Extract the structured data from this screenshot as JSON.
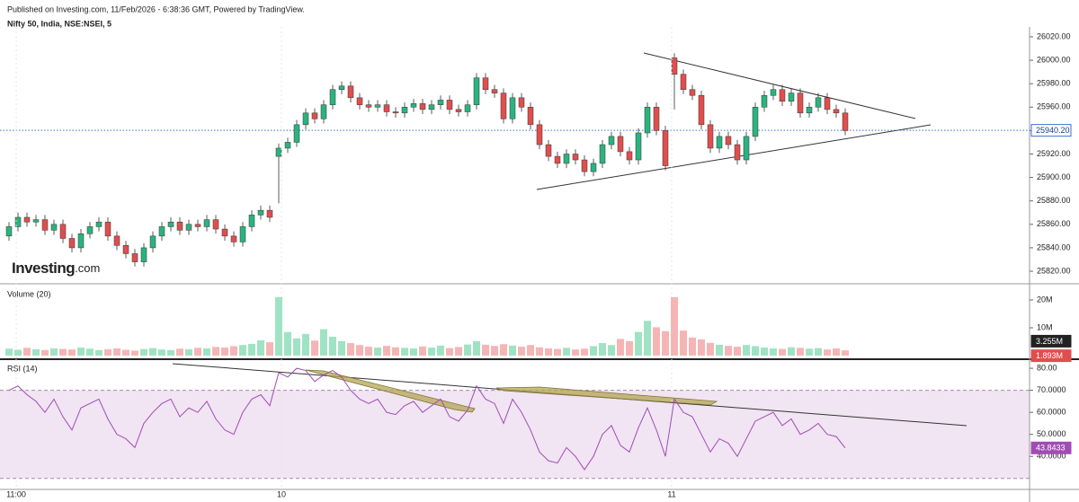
{
  "header": {
    "published": "Published on Investing.com, 11/Feb/2026 - 6:38:36 GMT, Powered by TradingView."
  },
  "logo": {
    "brand": "Investing",
    "suffix": ".com"
  },
  "chart_data": [
    {
      "type": "candlestick",
      "title": "Nifty 50, India, NSE:NSEI, 5",
      "up_color": "#2bb37f",
      "down_color": "#e04e4e",
      "open": [
        25850,
        25858,
        25866,
        25862,
        25864,
        25855,
        25860,
        25848,
        25840,
        25852,
        25858,
        25862,
        25850,
        25842,
        25835,
        25828,
        25840,
        25850,
        25858,
        25862,
        25855,
        25860,
        25858,
        25864,
        25856,
        25850,
        25845,
        25858,
        25868,
        25872,
        25918,
        25925,
        25930,
        25945,
        25955,
        25950,
        25962,
        25975,
        25978,
        25968,
        25962,
        25960,
        25962,
        25956,
        25955,
        25960,
        25963,
        25958,
        25962,
        25966,
        25958,
        25956,
        25962,
        25985,
        25975,
        25972,
        25950,
        25968,
        25960,
        25945,
        25928,
        25918,
        25912,
        25920,
        25915,
        25905,
        25912,
        25928,
        25935,
        25922,
        25915,
        25938,
        25960,
        25940,
        26002,
        25988,
        25975,
        25970,
        25945,
        25925,
        25935,
        25928,
        25915,
        25935,
        25960,
        25970,
        25975,
        25965,
        25972,
        25955,
        25960,
        25968,
        25958,
        25955
      ],
      "high": [
        25862,
        25870,
        25870,
        25868,
        25868,
        25864,
        25864,
        25852,
        25856,
        25862,
        25866,
        25866,
        25854,
        25846,
        25839,
        25844,
        25854,
        25862,
        25866,
        25866,
        25864,
        25864,
        25868,
        25868,
        25860,
        25854,
        25862,
        25872,
        25876,
        25876,
        25929,
        25934,
        25949,
        25959,
        25959,
        25966,
        25979,
        25982,
        25982,
        25972,
        25966,
        25966,
        25966,
        25960,
        25964,
        25967,
        25967,
        25966,
        25970,
        25970,
        25962,
        25966,
        25989,
        25989,
        25979,
        25976,
        25972,
        25972,
        25964,
        25949,
        25932,
        25922,
        25924,
        25924,
        25919,
        25916,
        25932,
        25939,
        25939,
        25926,
        25942,
        25964,
        25964,
        25944,
        26006,
        25992,
        25979,
        25974,
        25949,
        25939,
        25939,
        25932,
        25939,
        25964,
        25974,
        25979,
        25979,
        25976,
        25976,
        25964,
        25972,
        25972,
        25962,
        25959
      ],
      "low": [
        25846,
        25854,
        25858,
        25858,
        25851,
        25851,
        25844,
        25836,
        25836,
        25848,
        25854,
        25846,
        25838,
        25831,
        25824,
        25824,
        25836,
        25846,
        25854,
        25851,
        25851,
        25854,
        25854,
        25852,
        25846,
        25841,
        25841,
        25854,
        25864,
        25862,
        25878,
        25921,
        25926,
        25941,
        25946,
        25946,
        25958,
        25971,
        25964,
        25958,
        25956,
        25956,
        25952,
        25951,
        25951,
        25956,
        25954,
        25954,
        25958,
        25954,
        25952,
        25952,
        25958,
        25971,
        25968,
        25946,
        25946,
        25956,
        25941,
        25924,
        25914,
        25908,
        25908,
        25911,
        25901,
        25901,
        25908,
        25924,
        25918,
        25911,
        25911,
        25934,
        25936,
        25906,
        25958,
        25971,
        25966,
        25941,
        25921,
        25921,
        25924,
        25911,
        25911,
        25931,
        25956,
        25966,
        25961,
        25961,
        25951,
        25951,
        25956,
        25954,
        25951,
        25936
      ],
      "close": [
        25858,
        25866,
        25862,
        25864,
        25855,
        25860,
        25848,
        25840,
        25852,
        25858,
        25862,
        25850,
        25842,
        25835,
        25828,
        25840,
        25850,
        25858,
        25862,
        25855,
        25860,
        25858,
        25864,
        25856,
        25850,
        25845,
        25858,
        25868,
        25872,
        25866,
        25925,
        25930,
        25945,
        25955,
        25950,
        25962,
        25975,
        25978,
        25968,
        25962,
        25960,
        25962,
        25956,
        25955,
        25960,
        25963,
        25958,
        25962,
        25966,
        25958,
        25956,
        25962,
        25985,
        25975,
        25972,
        25950,
        25968,
        25960,
        25945,
        25928,
        25918,
        25912,
        25920,
        25915,
        25905,
        25912,
        25928,
        25935,
        25922,
        25915,
        25938,
        25960,
        25940,
        25910,
        25988,
        25975,
        25970,
        25945,
        25925,
        25935,
        25928,
        25915,
        25935,
        25960,
        25970,
        25975,
        25965,
        25972,
        25955,
        25960,
        25968,
        25958,
        25955,
        25940
      ],
      "ylim": [
        25809.3,
        26028.4
      ],
      "yticks": [
        {
          "value": 25820,
          "label": "25820.00"
        },
        {
          "value": 25840,
          "label": "25840.00"
        },
        {
          "value": 25860,
          "label": "25860.00"
        },
        {
          "value": 25880,
          "label": "25880.00"
        },
        {
          "value": 25900,
          "label": "25900.00"
        },
        {
          "value": 25920,
          "label": "25920.00"
        },
        {
          "value": 25940,
          "label": "25940.00"
        },
        {
          "value": 25960,
          "label": "25960.00"
        },
        {
          "value": 25980,
          "label": "25980.00"
        },
        {
          "value": 26000,
          "label": "26000.00"
        },
        {
          "value": 26020,
          "label": "26020.00"
        }
      ],
      "last_price": {
        "value": 25940.2,
        "label": "25940.20"
      },
      "x_labels": [
        {
          "index": 0.8,
          "label": "11:00"
        },
        {
          "index": 30.3,
          "label": "10"
        },
        {
          "index": 73.7,
          "label": "11"
        }
      ]
    },
    {
      "type": "bar",
      "title": "Volume (20)",
      "up_color": "#9fe3c4",
      "down_color": "#f6b5b5",
      "values": [
        2.5,
        2.1,
        2.8,
        2.3,
        2.0,
        2.6,
        2.4,
        2.2,
        2.9,
        2.5,
        2.0,
        2.3,
        2.6,
        2.1,
        1.8,
        2.4,
        2.7,
        2.2,
        2.0,
        2.5,
        2.3,
        2.8,
        2.6,
        3.1,
        2.9,
        3.4,
        3.8,
        4.2,
        5.5,
        4.8,
        21,
        8.5,
        6.2,
        7.8,
        5.4,
        9.5,
        6.8,
        5.2,
        4.5,
        3.8,
        3.2,
        2.9,
        3.5,
        3.0,
        2.8,
        2.6,
        3.3,
        2.9,
        3.6,
        2.7,
        3.1,
        4.0,
        5.2,
        3.9,
        3.5,
        4.1,
        3.6,
        3.2,
        3.8,
        3.0,
        2.6,
        2.4,
        2.8,
        2.2,
        2.5,
        3.4,
        4.5,
        3.8,
        6.0,
        5.2,
        8.5,
        12.5,
        10.2,
        8.8,
        21,
        9.0,
        6.5,
        5.8,
        4.6,
        3.9,
        3.5,
        3.2,
        3.8,
        3.4,
        2.9,
        2.6,
        2.4,
        3.0,
        2.8,
        2.5,
        2.7,
        2.2,
        2.6,
        1.893
      ],
      "ylim": [
        0,
        25
      ],
      "yticks": [
        {
          "value": 10,
          "label": "10M"
        },
        {
          "value": 20,
          "label": "20M"
        }
      ],
      "badges": [
        {
          "value": 3.255,
          "label": "3.255M",
          "color": "#222222"
        },
        {
          "value": 1.893,
          "label": "1.893M",
          "color": "#e04e4e"
        }
      ]
    },
    {
      "type": "line",
      "title": "RSI (14)",
      "color": "#a04cb4",
      "band_color": "#f1e4f3",
      "values": [
        70,
        72,
        68,
        65,
        60,
        66,
        58,
        52,
        62,
        64,
        66,
        57,
        50,
        48,
        44,
        55,
        60,
        64,
        66,
        58,
        62,
        60,
        65,
        57,
        52,
        50,
        60,
        66,
        68,
        63,
        78,
        76,
        80,
        79,
        74,
        77,
        79,
        76,
        70,
        66,
        64,
        66,
        60,
        59,
        63,
        65,
        60,
        63,
        66,
        58,
        56,
        61,
        72,
        66,
        64,
        55,
        66,
        60,
        52,
        42,
        38,
        37,
        44,
        40,
        34,
        40,
        50,
        54,
        45,
        42,
        53,
        62,
        52,
        40,
        66,
        60,
        58,
        50,
        42,
        48,
        46,
        40,
        48,
        56,
        58,
        60,
        54,
        57,
        50,
        52,
        55,
        50,
        49,
        43.8433
      ],
      "ylim": [
        25,
        83.3
      ],
      "yticks": [
        {
          "value": 40,
          "label": "40.0000"
        },
        {
          "value": 50,
          "label": "50.0000"
        },
        {
          "value": 60,
          "label": "60.0000"
        },
        {
          "value": 70,
          "label": "70.0000"
        },
        {
          "value": 80,
          "label": "80.00"
        }
      ],
      "bands": [
        30,
        70
      ],
      "last": 43.8433
    }
  ]
}
